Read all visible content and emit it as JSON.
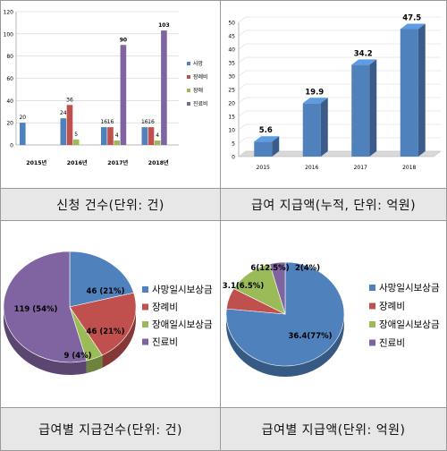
{
  "captions": {
    "top_left": "신청 건수(단위: 건)",
    "top_right": "급여 지급액(누적, 단위: 억원)",
    "bottom_left": "급여별 지급건수(단위: 건)",
    "bottom_right": "급여별 지급액(단위: 억원)"
  },
  "colors": {
    "blue": "#4f81bd",
    "red": "#c0504d",
    "green": "#9bbb59",
    "purple": "#8064a2"
  },
  "chart_data": [
    {
      "type": "bar",
      "categories": [
        "2015년",
        "2016년",
        "2017년",
        "2018년"
      ],
      "series": [
        {
          "name": "사망",
          "values": [
            20,
            24,
            16,
            16
          ],
          "labels": [
            "20",
            "24",
            "16",
            "16"
          ]
        },
        {
          "name": "장례비",
          "values": [
            0,
            36,
            16,
            16
          ],
          "labels": [
            "",
            "36",
            "16",
            "16"
          ]
        },
        {
          "name": "장애",
          "values": [
            0,
            5,
            4,
            4
          ],
          "labels": [
            "",
            "5",
            "4",
            "4"
          ]
        },
        {
          "name": "진료비",
          "values": [
            0,
            0,
            90,
            103
          ],
          "labels": [
            "",
            "",
            "90",
            "103"
          ]
        }
      ],
      "ylim": [
        0,
        120
      ],
      "yticks": [
        "0",
        "20",
        "40",
        "60",
        "80",
        "100",
        "120"
      ],
      "legend_position": "right",
      "grid": true
    },
    {
      "type": "bar",
      "categories": [
        "2015",
        "2016",
        "2017",
        "2018"
      ],
      "values": [
        5.6,
        19.9,
        34.2,
        47.5
      ],
      "labels": [
        "5.6",
        "19.9",
        "34.2",
        "47.5"
      ],
      "ylim": [
        0,
        50
      ],
      "yticks": [
        "0",
        "5",
        "10",
        "15",
        "20",
        "25",
        "30",
        "35",
        "40",
        "45",
        "50"
      ],
      "grid": true
    },
    {
      "type": "pie",
      "labels": [
        "사망일시보상금",
        "장례비",
        "장애일시보상금",
        "진료비"
      ],
      "values": [
        46,
        46,
        9,
        119
      ],
      "data_labels": [
        "46 (21%)",
        "46 (21%)",
        "9 (4%)",
        "119 (54%)"
      ],
      "legend_position": "right"
    },
    {
      "type": "pie",
      "labels": [
        "사망일시보상금",
        "장례비",
        "장애일시보상금",
        "진료비"
      ],
      "values": [
        36.4,
        3.1,
        6,
        2
      ],
      "data_labels": [
        "36.4(77%)",
        "3.1(6.5%)",
        "6(12.5%)",
        "2(4%)"
      ],
      "legend_position": "right"
    }
  ]
}
